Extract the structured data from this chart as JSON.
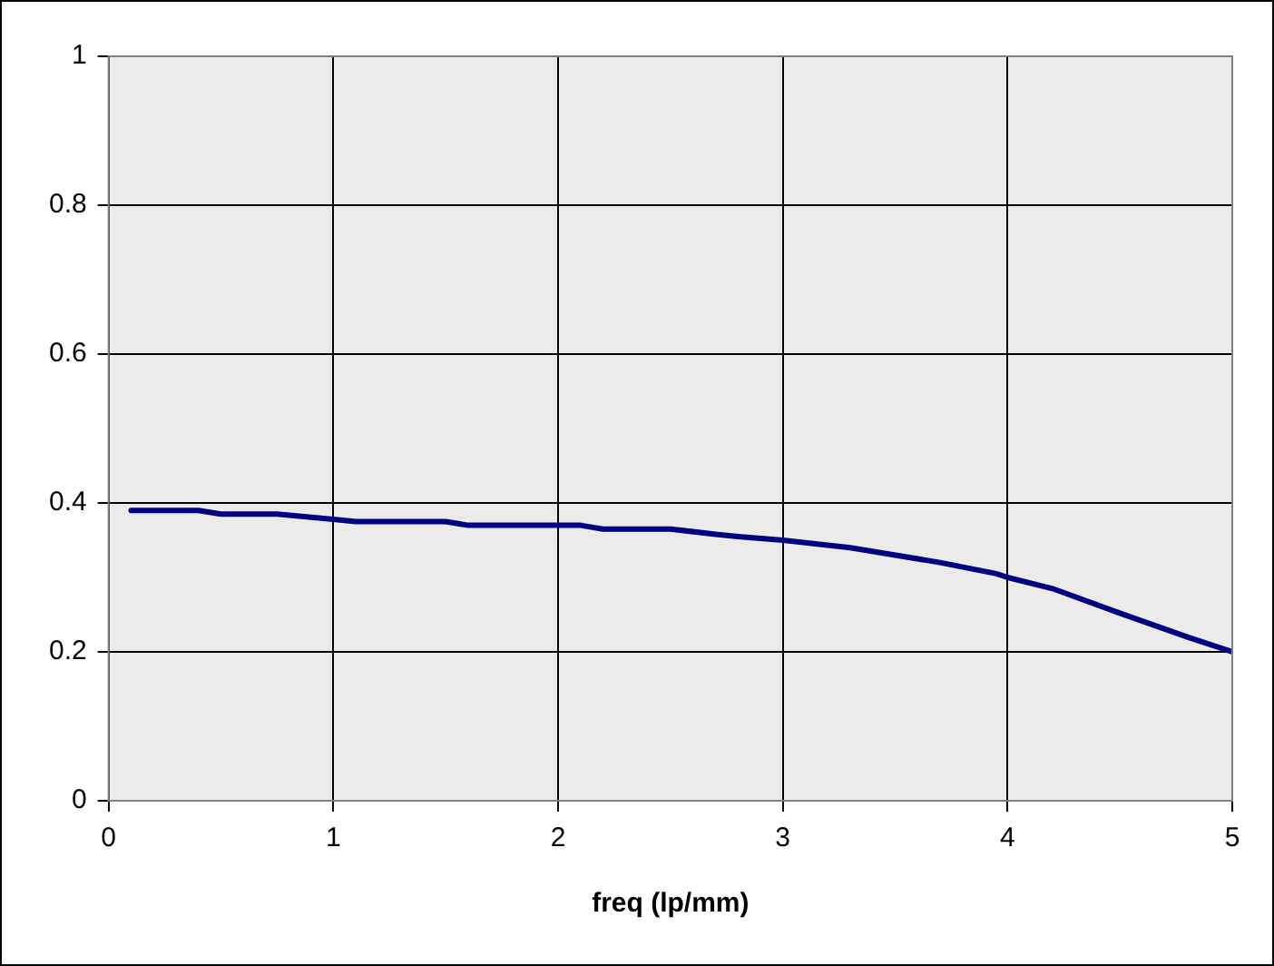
{
  "chart_data": {
    "type": "line",
    "xlabel": "freq (lp/mm)",
    "x": [
      0.1,
      0.4,
      0.5,
      0.75,
      1.0,
      1.1,
      1.5,
      1.6,
      2.0,
      2.1,
      2.2,
      2.5,
      2.7,
      2.8,
      3.0,
      3.3,
      3.7,
      3.95,
      4.0,
      4.2,
      4.5,
      4.8,
      5.0
    ],
    "series": [
      {
        "color": "#000080",
        "values": [
          0.39,
          0.39,
          0.385,
          0.385,
          0.378,
          0.375,
          0.375,
          0.37,
          0.37,
          0.37,
          0.365,
          0.365,
          0.358,
          0.355,
          0.35,
          0.34,
          0.32,
          0.305,
          0.3,
          0.285,
          0.252,
          0.22,
          0.2
        ]
      }
    ],
    "xlim": [
      0,
      5
    ],
    "xticks": [
      0,
      1,
      2,
      3,
      4,
      5
    ],
    "ylim": [
      0,
      1
    ],
    "yticks": [
      0,
      0.2,
      0.4,
      0.6,
      0.8,
      1
    ],
    "grid": true,
    "legend": false,
    "marker": "none",
    "line_style": "solid"
  }
}
